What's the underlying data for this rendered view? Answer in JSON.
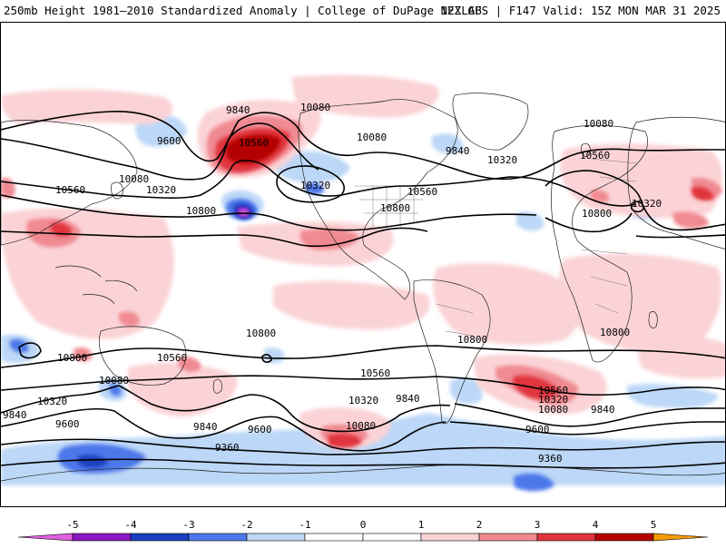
{
  "header": {
    "title": "250mb Height 1981–2010 Standardized Anomaly | College of DuPage NEXLAB",
    "run_info": "12Z GFS | F147 Valid: 15Z MON MAR 31 2025"
  },
  "colors": {
    "neg5": "#e060e0",
    "neg4": "#8a1ac0",
    "neg3": "#1a3fbf",
    "neg2": "#4e78ea",
    "neg1": "#bcd7f7",
    "zero": "#ffffff",
    "pos1": "#fbd3d6",
    "pos2": "#f08a92",
    "pos3": "#e0343c",
    "pos4": "#b40000",
    "pos5": "#f59a00"
  },
  "colorbar": {
    "labels": [
      "-5",
      "-4",
      "-3",
      "-2",
      "-1",
      "0",
      "1",
      "2",
      "3",
      "4",
      "5"
    ]
  },
  "contour_labels": [
    "9840",
    "10080",
    "9600",
    "10560",
    "10080",
    "9840",
    "10320",
    "10560",
    "10080",
    "10320",
    "10320",
    "10560",
    "10800",
    "10800",
    "10080",
    "10560",
    "10320",
    "10800",
    "10800",
    "10800",
    "10560",
    "10800",
    "10560",
    "10080",
    "10320",
    "9840",
    "10320",
    "9840",
    "10080",
    "9600",
    "9840",
    "9600",
    "10560",
    "10320",
    "10080",
    "9840",
    "9600",
    "9360",
    "9360",
    "10800"
  ]
}
